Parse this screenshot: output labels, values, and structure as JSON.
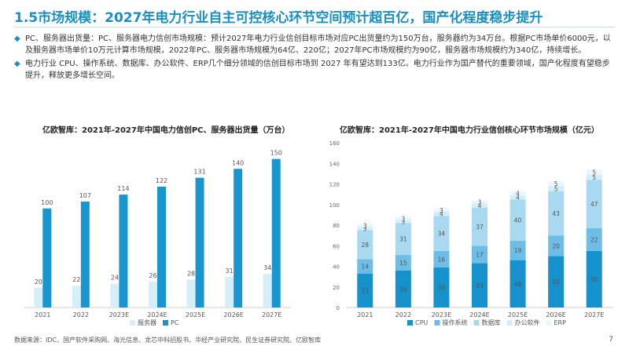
{
  "slide": {
    "title": "1.5市场规模：2027年电力行业自主可控核心环节空间预计超百亿，国产化程度稳步提升",
    "bullets": [
      "PC、服务器出货量：PC、服务器电力信创市场规模：预计2027年电力行业信创目标市场对应PC出货量约为150万台，服务器约为34万台。根据PC市场单价6000元，以及服务器市场单价10万元计算市场规模，2022年PC、服务器市场规模为64亿、220亿；2027年PC市场规模约为90亿，服务器市场规模约为340亿，持续增长。",
      "电力行业 CPU、操作系统、数据库、办公软件、ERP几个细分领域的信创目标市场到 2027 年有望达到133亿。电力行业作为国产替代的重要领域，国产化程度有望稳步提升，释放更多增长空间。"
    ],
    "bullet_icon": "diamond-bullet-icon",
    "source": "数据来源：IDC、国产软件采购网、海光信息、龙芯中科招股书、华经产业研究院、民生证券研究院、亿欧智库",
    "page_number": "7",
    "accent_color": "#1a8fc0"
  },
  "chart_data": [
    {
      "type": "bar",
      "title": "亿欧智库：2021年-2027年中国电力信创PC、服务器出货量（万台）",
      "categories": [
        "2021",
        "2022",
        "2023E",
        "2024E",
        "2025E",
        "2026E",
        "2027E"
      ],
      "series": [
        {
          "name": "服务器",
          "values": [
            20,
            22,
            24,
            26,
            28,
            31,
            34
          ],
          "color": "#d6eef8"
        },
        {
          "name": "PC",
          "values": [
            100,
            107,
            114,
            122,
            131,
            140,
            150
          ],
          "color": "#1996cf"
        }
      ],
      "ylim": [
        0,
        160
      ],
      "grid": false,
      "legend": "bottom"
    },
    {
      "type": "bar",
      "stacked": true,
      "title": "亿欧智库：2021年-2027年中国电力行业信创核心环节市场规模（亿元）",
      "categories": [
        "2021",
        "2022",
        "2023E",
        "2024E",
        "2025E",
        "2026E",
        "2027E"
      ],
      "series": [
        {
          "name": "CPU",
          "values": [
            33,
            36,
            39,
            43,
            46,
            50,
            55
          ],
          "color": "#1591cb"
        },
        {
          "name": "操作系统",
          "values": [
            14,
            15,
            16,
            17,
            19,
            20,
            22
          ],
          "color": "#6dbde6"
        },
        {
          "name": "数据库",
          "values": [
            28,
            31,
            34,
            37,
            40,
            43,
            47
          ],
          "color": "#a9d9f1"
        },
        {
          "name": "办公软件",
          "values": [
            3,
            3,
            4,
            4,
            4,
            5,
            5
          ],
          "color": "#d3edf9"
        },
        {
          "name": "ERP",
          "values": [
            3,
            3,
            3,
            3,
            4,
            5,
            5
          ],
          "color": "#eaf6fc"
        }
      ],
      "ylim": [
        0,
        160
      ],
      "yticks": [
        0,
        20,
        40,
        60,
        80,
        100,
        120,
        140,
        160
      ],
      "grid": false,
      "legend": "bottom"
    }
  ]
}
